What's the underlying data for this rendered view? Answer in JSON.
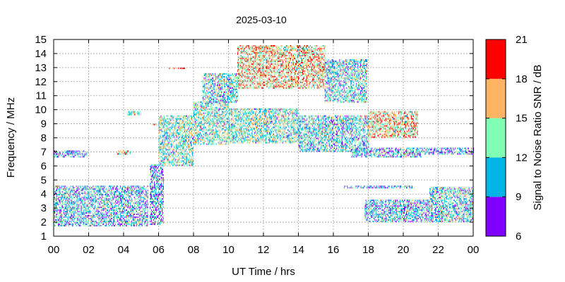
{
  "chart_data": {
    "type": "heatmap",
    "title": "2025-03-10",
    "xlabel": "UT Time / hrs",
    "ylabel": "Frequency / MHz",
    "xlim": [
      0,
      24
    ],
    "ylim": [
      1,
      15
    ],
    "x_tick_labels": [
      "00",
      "02",
      "04",
      "06",
      "08",
      "10",
      "12",
      "14",
      "16",
      "18",
      "20",
      "22",
      "00"
    ],
    "y_tick_labels": [
      "1",
      "2",
      "3",
      "4",
      "5",
      "6",
      "7",
      "8",
      "9",
      "10",
      "11",
      "12",
      "13",
      "14",
      "15"
    ],
    "grid": true,
    "colorbar": {
      "label": "Signal to Noise Ratio SNR / dB",
      "range": [
        6,
        21
      ],
      "tick_labels": [
        "6",
        "9",
        "12",
        "15",
        "18",
        "21"
      ],
      "bands": [
        {
          "min": 6,
          "max": 9,
          "color": "#8000ff"
        },
        {
          "min": 9,
          "max": 12,
          "color": "#00b4e6"
        },
        {
          "min": 12,
          "max": 15,
          "color": "#80ffb4"
        },
        {
          "min": 15,
          "max": 18,
          "color": "#ffb464"
        },
        {
          "min": 18,
          "max": 21,
          "color": "#ff0000"
        }
      ]
    },
    "regions": [
      {
        "t0": 0.0,
        "t1": 5.4,
        "f0": 1.7,
        "f1": 4.6,
        "snr": 11
      },
      {
        "t0": 0.0,
        "t1": 1.9,
        "f0": 6.6,
        "f1": 7.0,
        "snr": 10
      },
      {
        "t0": 3.6,
        "t1": 4.4,
        "f0": 6.8,
        "f1": 7.0,
        "snr": 15
      },
      {
        "t0": 4.2,
        "t1": 5.0,
        "f0": 9.6,
        "f1": 9.8,
        "snr": 14
      },
      {
        "t0": 5.4,
        "t1": 5.9,
        "f0": 8.9,
        "f1": 9.0,
        "snr": 19
      },
      {
        "t0": 5.5,
        "t1": 6.3,
        "f0": 1.8,
        "f1": 6.0,
        "snr": 10
      },
      {
        "t0": 6.0,
        "t1": 8.0,
        "f0": 6.0,
        "f1": 9.5,
        "snr": 13
      },
      {
        "t0": 6.6,
        "t1": 7.6,
        "f0": 12.9,
        "f1": 13.0,
        "snr": 19
      },
      {
        "t0": 8.0,
        "t1": 10.0,
        "f0": 7.5,
        "f1": 10.5,
        "snr": 13
      },
      {
        "t0": 8.5,
        "t1": 10.5,
        "f0": 10.5,
        "f1": 12.5,
        "snr": 12
      },
      {
        "t0": 10.0,
        "t1": 14.0,
        "f0": 7.6,
        "f1": 10.0,
        "snr": 13
      },
      {
        "t0": 10.5,
        "t1": 15.5,
        "f0": 11.5,
        "f1": 14.5,
        "snr": 16
      },
      {
        "t0": 14.0,
        "t1": 18.0,
        "f0": 7.0,
        "f1": 9.5,
        "snr": 12
      },
      {
        "t0": 15.5,
        "t1": 17.9,
        "f0": 10.5,
        "f1": 13.5,
        "snr": 12
      },
      {
        "t0": 18.0,
        "t1": 20.8,
        "f0": 8.0,
        "f1": 9.8,
        "snr": 16
      },
      {
        "t0": 17.0,
        "t1": 21.0,
        "f0": 6.6,
        "f1": 7.2,
        "snr": 11
      },
      {
        "t0": 17.8,
        "t1": 21.5,
        "f0": 2.0,
        "f1": 3.6,
        "snr": 11
      },
      {
        "t0": 16.6,
        "t1": 20.6,
        "f0": 4.4,
        "f1": 4.6,
        "snr": 10
      },
      {
        "t0": 21.5,
        "t1": 24.0,
        "f0": 2.0,
        "f1": 4.5,
        "snr": 12
      },
      {
        "t0": 21.0,
        "t1": 24.0,
        "f0": 6.8,
        "f1": 7.2,
        "snr": 10
      }
    ]
  }
}
